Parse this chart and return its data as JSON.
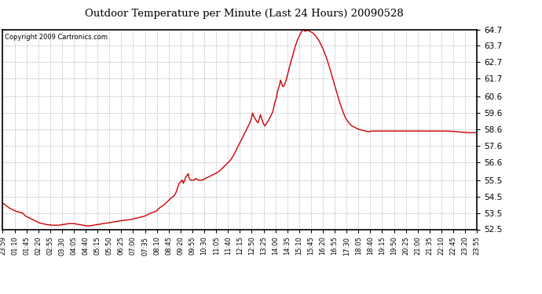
{
  "title": "Outdoor Temperature per Minute (Last 24 Hours) 20090528",
  "copyright_text": "Copyright 2009 Cartronics.com",
  "line_color": "#cc0000",
  "background_color": "#ffffff",
  "plot_background": "#ffffff",
  "grid_color": "#bbbbbb",
  "ylim": [
    52.5,
    64.7
  ],
  "yticks": [
    52.5,
    53.5,
    54.5,
    55.5,
    56.6,
    57.6,
    58.6,
    59.6,
    60.6,
    61.7,
    62.7,
    63.7,
    64.7
  ],
  "xtick_labels": [
    "23:59",
    "01:10",
    "01:45",
    "02:20",
    "02:55",
    "03:30",
    "04:05",
    "04:40",
    "05:15",
    "05:50",
    "06:25",
    "07:00",
    "07:35",
    "08:10",
    "08:45",
    "09:20",
    "09:55",
    "10:30",
    "11:05",
    "11:40",
    "12:15",
    "12:50",
    "13:25",
    "14:00",
    "14:35",
    "15:10",
    "15:45",
    "16:20",
    "16:55",
    "17:30",
    "18:05",
    "18:40",
    "19:15",
    "19:50",
    "20:25",
    "21:00",
    "21:35",
    "22:10",
    "22:45",
    "23:20",
    "23:55"
  ],
  "num_points": 1440,
  "keypoints": [
    [
      0,
      54.1
    ],
    [
      20,
      53.8
    ],
    [
      40,
      53.6
    ],
    [
      60,
      53.5
    ],
    [
      70,
      53.3
    ],
    [
      90,
      53.1
    ],
    [
      100,
      53.0
    ],
    [
      110,
      52.9
    ],
    [
      130,
      52.8
    ],
    [
      150,
      52.75
    ],
    [
      170,
      52.75
    ],
    [
      185,
      52.8
    ],
    [
      200,
      52.85
    ],
    [
      215,
      52.85
    ],
    [
      230,
      52.8
    ],
    [
      245,
      52.75
    ],
    [
      260,
      52.7
    ],
    [
      275,
      52.75
    ],
    [
      290,
      52.8
    ],
    [
      305,
      52.85
    ],
    [
      320,
      52.9
    ],
    [
      335,
      52.95
    ],
    [
      350,
      53.0
    ],
    [
      370,
      53.05
    ],
    [
      390,
      53.1
    ],
    [
      410,
      53.2
    ],
    [
      430,
      53.3
    ],
    [
      450,
      53.5
    ],
    [
      465,
      53.6
    ],
    [
      475,
      53.8
    ],
    [
      490,
      54.0
    ],
    [
      500,
      54.2
    ],
    [
      510,
      54.4
    ],
    [
      520,
      54.55
    ],
    [
      525,
      54.7
    ],
    [
      530,
      55.0
    ],
    [
      535,
      55.3
    ],
    [
      540,
      55.4
    ],
    [
      545,
      55.5
    ],
    [
      548,
      55.3
    ],
    [
      552,
      55.5
    ],
    [
      556,
      55.7
    ],
    [
      560,
      55.8
    ],
    [
      563,
      55.9
    ],
    [
      566,
      55.6
    ],
    [
      570,
      55.5
    ],
    [
      575,
      55.5
    ],
    [
      580,
      55.5
    ],
    [
      585,
      55.6
    ],
    [
      590,
      55.55
    ],
    [
      595,
      55.5
    ],
    [
      600,
      55.5
    ],
    [
      605,
      55.5
    ],
    [
      610,
      55.55
    ],
    [
      615,
      55.6
    ],
    [
      620,
      55.65
    ],
    [
      625,
      55.7
    ],
    [
      630,
      55.75
    ],
    [
      635,
      55.8
    ],
    [
      640,
      55.85
    ],
    [
      645,
      55.9
    ],
    [
      650,
      55.95
    ],
    [
      660,
      56.1
    ],
    [
      670,
      56.3
    ],
    [
      680,
      56.5
    ],
    [
      690,
      56.7
    ],
    [
      700,
      57.0
    ],
    [
      710,
      57.4
    ],
    [
      720,
      57.8
    ],
    [
      730,
      58.2
    ],
    [
      740,
      58.6
    ],
    [
      750,
      59.0
    ],
    [
      755,
      59.3
    ],
    [
      758,
      59.6
    ],
    [
      761,
      59.4
    ],
    [
      765,
      59.3
    ],
    [
      770,
      59.1
    ],
    [
      775,
      59.0
    ],
    [
      778,
      59.2
    ],
    [
      782,
      59.5
    ],
    [
      785,
      59.3
    ],
    [
      790,
      59.0
    ],
    [
      795,
      58.8
    ],
    [
      798,
      58.9
    ],
    [
      802,
      59.0
    ],
    [
      808,
      59.2
    ],
    [
      815,
      59.5
    ],
    [
      820,
      59.7
    ],
    [
      825,
      60.2
    ],
    [
      830,
      60.5
    ],
    [
      835,
      61.0
    ],
    [
      840,
      61.3
    ],
    [
      843,
      61.6
    ],
    [
      846,
      61.4
    ],
    [
      850,
      61.2
    ],
    [
      855,
      61.3
    ],
    [
      860,
      61.6
    ],
    [
      865,
      62.0
    ],
    [
      870,
      62.4
    ],
    [
      875,
      62.8
    ],
    [
      880,
      63.1
    ],
    [
      885,
      63.5
    ],
    [
      890,
      63.8
    ],
    [
      895,
      64.1
    ],
    [
      900,
      64.3
    ],
    [
      905,
      64.5
    ],
    [
      908,
      64.6
    ],
    [
      910,
      64.65
    ],
    [
      912,
      64.7
    ],
    [
      914,
      64.65
    ],
    [
      916,
      64.6
    ],
    [
      920,
      64.6
    ],
    [
      925,
      64.65
    ],
    [
      930,
      64.6
    ],
    [
      935,
      64.55
    ],
    [
      940,
      64.5
    ],
    [
      950,
      64.3
    ],
    [
      960,
      64.0
    ],
    [
      970,
      63.6
    ],
    [
      980,
      63.1
    ],
    [
      990,
      62.5
    ],
    [
      1000,
      61.8
    ],
    [
      1010,
      61.1
    ],
    [
      1020,
      60.4
    ],
    [
      1030,
      59.8
    ],
    [
      1040,
      59.3
    ],
    [
      1050,
      59.0
    ],
    [
      1060,
      58.8
    ],
    [
      1070,
      58.7
    ],
    [
      1080,
      58.6
    ],
    [
      1090,
      58.55
    ],
    [
      1100,
      58.5
    ],
    [
      1110,
      58.45
    ],
    [
      1120,
      58.5
    ],
    [
      1130,
      58.5
    ],
    [
      1150,
      58.5
    ],
    [
      1200,
      58.5
    ],
    [
      1250,
      58.5
    ],
    [
      1300,
      58.5
    ],
    [
      1350,
      58.5
    ],
    [
      1380,
      58.45
    ],
    [
      1410,
      58.4
    ],
    [
      1430,
      58.4
    ],
    [
      1439,
      58.4
    ]
  ]
}
